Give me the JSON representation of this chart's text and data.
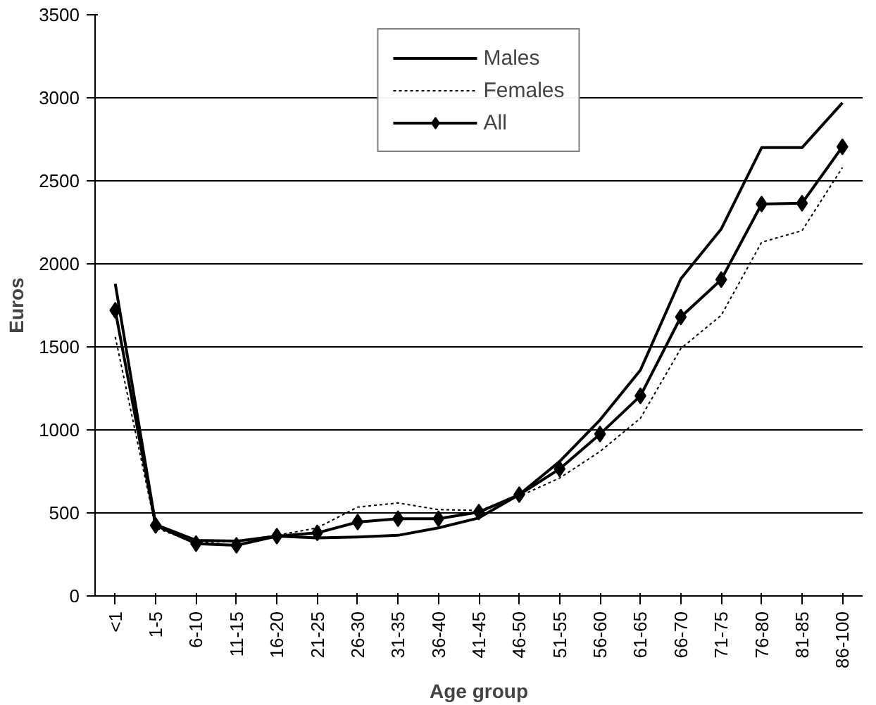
{
  "chart_data": {
    "type": "line",
    "xlabel": "Age group",
    "ylabel": "Euros",
    "categories": [
      "<1",
      "1-5",
      "6-10",
      "11-15",
      "16-20",
      "21-25",
      "26-30",
      "31-35",
      "36-40",
      "41-45",
      "46-50",
      "51-55",
      "56-60",
      "61-65",
      "66-70",
      "71-75",
      "76-80",
      "81-85",
      "86-100"
    ],
    "series": [
      {
        "name": "Males",
        "color": "#000000",
        "line_style": "solid",
        "marker": "none",
        "values": [
          1880,
          430,
          335,
          330,
          360,
          350,
          355,
          365,
          410,
          470,
          610,
          810,
          1060,
          1360,
          1910,
          2210,
          2700,
          2700,
          2970
        ]
      },
      {
        "name": "Females",
        "color": "#000000",
        "line_style": "dotted",
        "marker": "none",
        "values": [
          1560,
          410,
          320,
          330,
          365,
          410,
          535,
          560,
          520,
          515,
          600,
          710,
          870,
          1070,
          1490,
          1690,
          2130,
          2200,
          2580
        ]
      },
      {
        "name": "All",
        "color": "#000000",
        "line_style": "solid",
        "marker": "diamond",
        "values": [
          1720,
          425,
          315,
          305,
          360,
          380,
          445,
          465,
          465,
          505,
          610,
          765,
          975,
          1205,
          1680,
          1905,
          2360,
          2365,
          2705
        ]
      }
    ],
    "ylim": [
      0,
      3500
    ],
    "yticks": [
      0,
      500,
      1000,
      1500,
      2000,
      2500,
      3000,
      3500
    ],
    "grid": "y",
    "legend": "top"
  }
}
